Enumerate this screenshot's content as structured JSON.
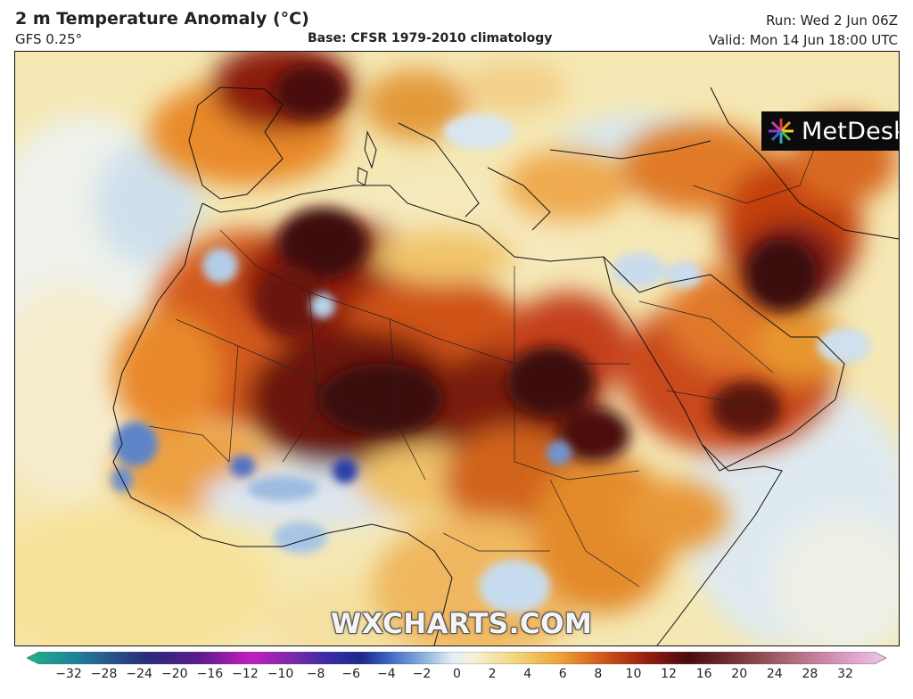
{
  "header": {
    "title": "2 m Temperature Anomaly (°C)",
    "model": "GFS 0.25°",
    "base": "Base: CFSR 1979-2010 climatology",
    "run": "Run: Wed 2 Jun 06Z",
    "valid": "Valid: Mon 14 Jun 18:00 UTC"
  },
  "logo": {
    "text": "MetDesk",
    "icon": "metdesk-starburst-icon"
  },
  "watermark": "WXCHARTS.COM",
  "colorbar": {
    "ticks": [
      "−32",
      "−28",
      "−24",
      "−20",
      "−16",
      "−12",
      "−10",
      "−8",
      "−6",
      "−4",
      "−2",
      "0",
      "2",
      "4",
      "6",
      "8",
      "10",
      "12",
      "16",
      "20",
      "24",
      "28",
      "32"
    ],
    "colors": {
      "cold_end": "#1fb38a",
      "deep_blue": "#1b2a8a",
      "blue": "#4a78c8",
      "light_blue": "#cfe2f0",
      "neutral": "#f6f2d8",
      "yellow": "#f3d47a",
      "orange": "#e9901f",
      "red": "#c43b10",
      "dark_red": "#5a0e0c",
      "hot_end": "#e8a8d8"
    }
  }
}
